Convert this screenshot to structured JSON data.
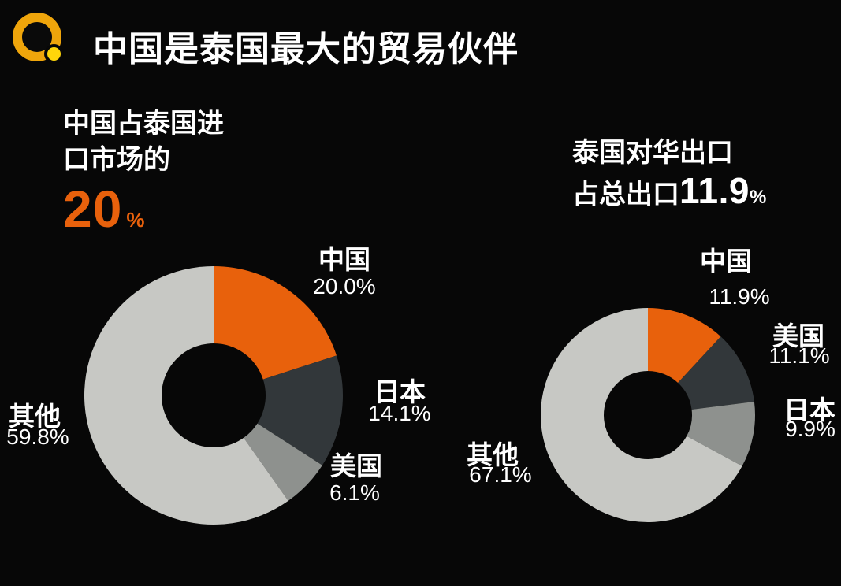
{
  "header": {
    "title": "中国是泰国最大的贸易伙伴"
  },
  "stats": {
    "left": {
      "line1": "中国占泰国进",
      "line2": "口市场的",
      "value": "20",
      "unit": "%"
    },
    "right": {
      "line1": "泰国对华出口",
      "line2_prefix": "占总出口",
      "value": "11.9",
      "unit": "%"
    }
  },
  "colors": {
    "background": "#070707",
    "accent_orange": "#e8610c",
    "dark_slice": "#32373a",
    "mid_slice": "#8e918e",
    "light_slice": "#c7c8c4",
    "text": "#ffffff"
  },
  "chart_data": [
    {
      "type": "pie",
      "donut": true,
      "title": "中国占泰国进口市场的20%",
      "start_angle_deg": 0,
      "direction": "clockwise",
      "legend": false,
      "total": 100,
      "slices": [
        {
          "label": "中国",
          "value": 20.0,
          "pct_text": "20.0%",
          "color": "#e8610c"
        },
        {
          "label": "日本",
          "value": 14.1,
          "pct_text": "14.1%",
          "color": "#32373a"
        },
        {
          "label": "美国",
          "value": 6.1,
          "pct_text": "6.1%",
          "color": "#8e918e"
        },
        {
          "label": "其他",
          "value": 59.8,
          "pct_text": "59.8%",
          "color": "#c7c8c4"
        }
      ]
    },
    {
      "type": "pie",
      "donut": true,
      "title": "泰国对华出口占总出口11.9%",
      "start_angle_deg": 0,
      "direction": "clockwise",
      "legend": false,
      "total": 100,
      "slices": [
        {
          "label": "中国",
          "value": 11.9,
          "pct_text": "11.9%",
          "color": "#e8610c"
        },
        {
          "label": "美国",
          "value": 11.1,
          "pct_text": "11.1%",
          "color": "#32373a"
        },
        {
          "label": "日本",
          "value": 9.9,
          "pct_text": "9.9%",
          "color": "#8e918e"
        },
        {
          "label": "其他",
          "value": 67.1,
          "pct_text": "67.1%",
          "color": "#c7c8c4"
        }
      ]
    }
  ]
}
